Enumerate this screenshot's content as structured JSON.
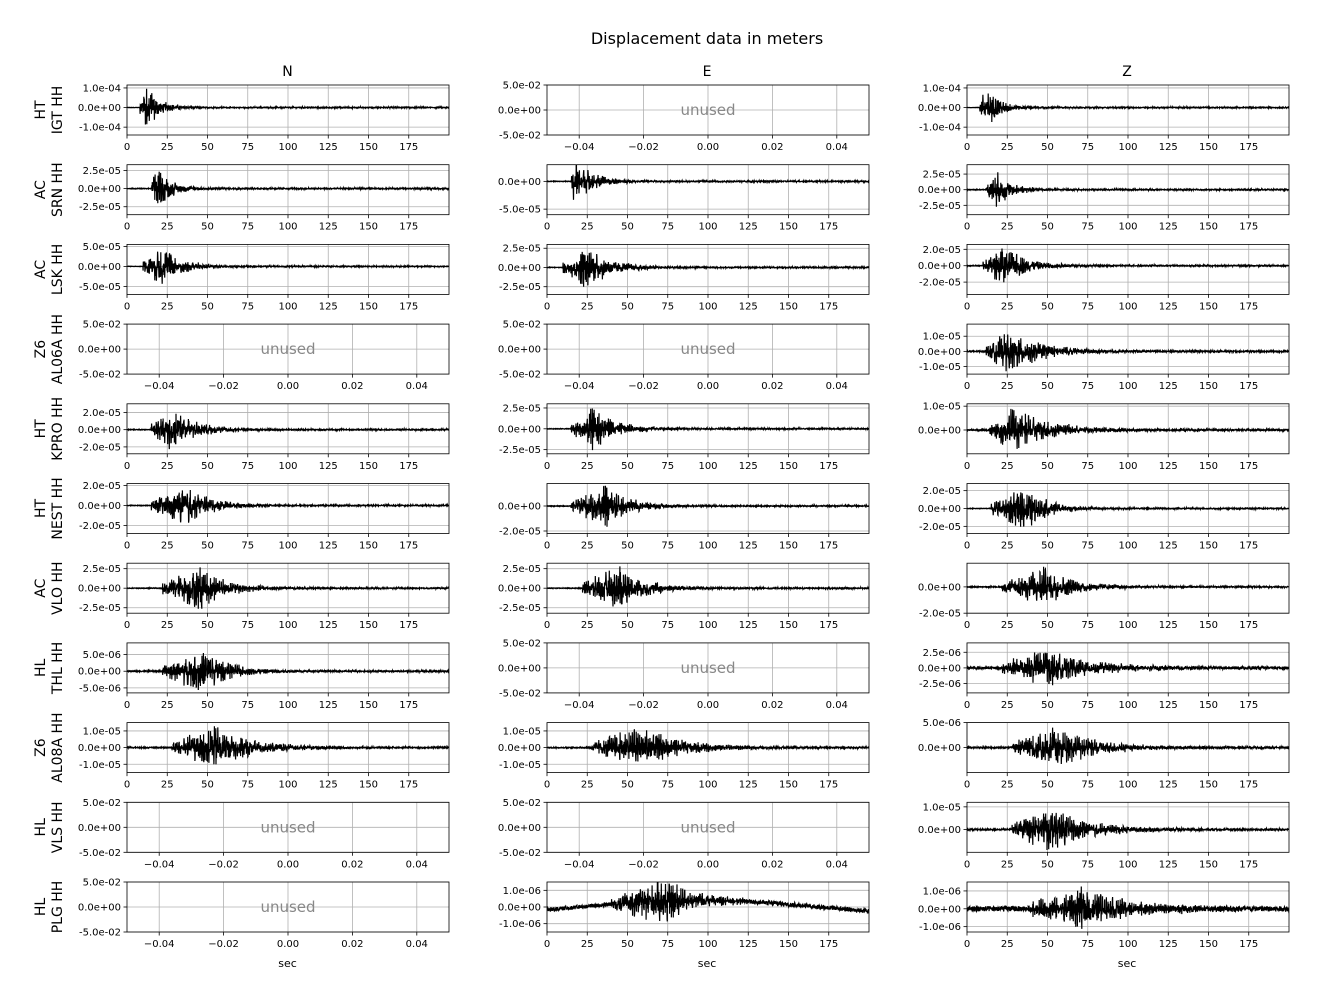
{
  "figure": {
    "title": "Displacement data in meters",
    "columns": [
      "N",
      "E",
      "Z"
    ],
    "xlabel": "sec",
    "unused_label": "unused",
    "trace_color": "#000000",
    "grid_color": "#b0b0b0",
    "unused_color": "#888888"
  },
  "chart_data": {
    "type": "line",
    "description_units": "displacement (m) vs time (sec)",
    "time_xlim": [
      0,
      200
    ],
    "time_xticks": [
      "0",
      "25",
      "50",
      "75",
      "100",
      "125",
      "150",
      "175"
    ],
    "unused_xticks": [
      "−0.04",
      "−0.02",
      "0.00",
      "0.02",
      "0.04"
    ],
    "unused_yticks": [
      "5.0e-02",
      "0.0e+00",
      "-5.0e-02"
    ],
    "rows": [
      {
        "label": [
          "HT",
          "IGT HH"
        ],
        "panels": [
          {
            "unused": false,
            "yticks": [
              "1.0e-04",
              "0.0e+00",
              "-1.0e-04"
            ],
            "ytick_values": [
              0.0001,
              0,
              -0.0001
            ],
            "ylim": [
              -0.00014,
              0.000115
            ],
            "amp": 0.00012,
            "onset": 8,
            "peak": 12,
            "decay": 8,
            "noise": 1e-06,
            "period": 0.8
          },
          {
            "unused": true
          },
          {
            "unused": false,
            "yticks": [
              "1.0e-04",
              "0.0e+00",
              "-1.0e-04"
            ],
            "ytick_values": [
              0.0001,
              0,
              -0.0001
            ],
            "ylim": [
              -0.00014,
              0.000115
            ],
            "amp": 0.00012,
            "onset": 8,
            "peak": 12,
            "decay": 8,
            "noise": 1e-06,
            "period": 0.8
          }
        ]
      },
      {
        "label": [
          "AC",
          "SRN HH"
        ],
        "panels": [
          {
            "unused": false,
            "yticks": [
              "2.5e-05",
              "0.0e+00",
              "-2.5e-05"
            ],
            "ytick_values": [
              2.5e-05,
              0,
              -2.5e-05
            ],
            "ylim": [
              -3.6e-05,
              3.3e-05
            ],
            "amp": 3.2e-05,
            "onset": 15,
            "peak": 18,
            "decay": 9,
            "noise": 5e-07,
            "period": 0.9
          },
          {
            "unused": false,
            "yticks": [
              "0.0e+00",
              "-5.0e-05"
            ],
            "ytick_values": [
              0,
              -5e-05
            ],
            "ylim": [
              -6e-05,
              3e-05
            ],
            "amp": 5e-05,
            "onset": 15,
            "peak": 17,
            "decay": 10,
            "noise": 5e-07,
            "period": 0.9
          },
          {
            "unused": false,
            "yticks": [
              "2.5e-05",
              "0.0e+00",
              "-2.5e-05"
            ],
            "ytick_values": [
              2.5e-05,
              0,
              -2.5e-05
            ],
            "ylim": [
              -4e-05,
              4e-05
            ],
            "amp": 3.5e-05,
            "onset": 12,
            "peak": 18,
            "decay": 9,
            "noise": 5e-07,
            "period": 0.9
          }
        ]
      },
      {
        "label": [
          "AC",
          "LSK HH"
        ],
        "panels": [
          {
            "unused": false,
            "yticks": [
              "5.0e-05",
              "0.0e+00",
              "-5.0e-05"
            ],
            "ytick_values": [
              5e-05,
              0,
              -5e-05
            ],
            "ylim": [
              -7e-05,
              5.5e-05
            ],
            "amp": 5.5e-05,
            "onset": 10,
            "peak": 22,
            "decay": 12,
            "noise": 5e-07,
            "period": 0.9
          },
          {
            "unused": false,
            "yticks": [
              "2.5e-05",
              "0.0e+00",
              "-2.5e-05"
            ],
            "ytick_values": [
              2.5e-05,
              0,
              -2.5e-05
            ],
            "ylim": [
              -3.5e-05,
              3e-05
            ],
            "amp": 3e-05,
            "onset": 10,
            "peak": 25,
            "decay": 14,
            "noise": 4e-07,
            "period": 0.9
          },
          {
            "unused": false,
            "yticks": [
              "2.0e-05",
              "0.0e+00",
              "-2.0e-05"
            ],
            "ytick_values": [
              2e-05,
              0,
              -2e-05
            ],
            "ylim": [
              -3.5e-05,
              2.6e-05
            ],
            "amp": 2.6e-05,
            "onset": 10,
            "peak": 23,
            "decay": 14,
            "noise": 4e-07,
            "period": 0.9
          }
        ]
      },
      {
        "label": [
          "Z6",
          "AL06A HH"
        ],
        "panels": [
          {
            "unused": true
          },
          {
            "unused": true
          },
          {
            "unused": false,
            "yticks": [
              "1.0e-05",
              "0.0e+00",
              "-1.0e-05"
            ],
            "ytick_values": [
              1e-05,
              0,
              -1e-05
            ],
            "ylim": [
              -1.5e-05,
              1.8e-05
            ],
            "amp": 1.5e-05,
            "onset": 12,
            "peak": 27,
            "decay": 20,
            "noise": 4e-07,
            "period": 1.0
          }
        ]
      },
      {
        "label": [
          "HT",
          "KPRO HH"
        ],
        "panels": [
          {
            "unused": false,
            "yticks": [
              "2.0e-05",
              "0.0e+00",
              "-2.0e-05"
            ],
            "ytick_values": [
              2e-05,
              0,
              -2e-05
            ],
            "ylim": [
              -2.8e-05,
              3e-05
            ],
            "amp": 2.8e-05,
            "onset": 15,
            "peak": 28,
            "decay": 14,
            "noise": 4e-07,
            "period": 1.0
          },
          {
            "unused": false,
            "yticks": [
              "2.5e-05",
              "0.0e+00",
              "-2.5e-05"
            ],
            "ytick_values": [
              2.5e-05,
              0,
              -2.5e-05
            ],
            "ylim": [
              -3e-05,
              3e-05
            ],
            "amp": 2.8e-05,
            "onset": 15,
            "peak": 28,
            "decay": 14,
            "noise": 4e-07,
            "period": 1.0
          },
          {
            "unused": false,
            "yticks": [
              "1.0e-05",
              "0.0e+00"
            ],
            "ytick_values": [
              1e-05,
              0
            ],
            "ylim": [
              -1e-05,
              1.1e-05
            ],
            "amp": 1e-05,
            "onset": 14,
            "peak": 28,
            "decay": 22,
            "noise": 3e-07,
            "period": 1.0
          }
        ]
      },
      {
        "label": [
          "HT",
          "NEST HH"
        ],
        "panels": [
          {
            "unused": false,
            "yticks": [
              "2.0e-05",
              "0.0e+00",
              "-2.0e-05"
            ],
            "ytick_values": [
              2e-05,
              0,
              -2e-05
            ],
            "ylim": [
              -2.8e-05,
              2.2e-05
            ],
            "amp": 2.2e-05,
            "onset": 15,
            "peak": 37,
            "decay": 14,
            "noise": 3e-07,
            "period": 1.0
          },
          {
            "unused": false,
            "yticks": [
              "0.0e+00",
              "-2.0e-05"
            ],
            "ytick_values": [
              0,
              -2e-05
            ],
            "ylim": [
              -2.2e-05,
              1.8e-05
            ],
            "amp": 1.8e-05,
            "onset": 15,
            "peak": 37,
            "decay": 14,
            "noise": 3e-07,
            "period": 1.0
          },
          {
            "unused": false,
            "yticks": [
              "2.0e-05",
              "0.0e+00",
              "-2.0e-05"
            ],
            "ytick_values": [
              2e-05,
              0,
              -2e-05
            ],
            "ylim": [
              -2.8e-05,
              2.8e-05
            ],
            "amp": 2.8e-05,
            "onset": 15,
            "peak": 37,
            "decay": 12,
            "noise": 3e-07,
            "period": 1.0
          }
        ]
      },
      {
        "label": [
          "AC",
          "VLO HH"
        ],
        "panels": [
          {
            "unused": false,
            "yticks": [
              "2.5e-05",
              "0.0e+00",
              "-2.5e-05"
            ],
            "ytick_values": [
              2.5e-05,
              0,
              -2.5e-05
            ],
            "ylim": [
              -3.2e-05,
              3.2e-05
            ],
            "amp": 3e-05,
            "onset": 22,
            "peak": 45,
            "decay": 16,
            "noise": 4e-07,
            "period": 1.1
          },
          {
            "unused": false,
            "yticks": [
              "2.5e-05",
              "0.0e+00",
              "-2.5e-05"
            ],
            "ytick_values": [
              2.5e-05,
              0,
              -2.5e-05
            ],
            "ylim": [
              -3.2e-05,
              3.2e-05
            ],
            "amp": 3e-05,
            "onset": 22,
            "peak": 45,
            "decay": 16,
            "noise": 4e-07,
            "period": 1.1
          },
          {
            "unused": false,
            "yticks": [
              "0.0e+00",
              "-2.0e-05"
            ],
            "ytick_values": [
              0,
              -2e-05
            ],
            "ylim": [
              -2e-05,
              1.8e-05
            ],
            "amp": 1.6e-05,
            "onset": 22,
            "peak": 47,
            "decay": 18,
            "noise": 3e-07,
            "period": 1.1
          }
        ]
      },
      {
        "label": [
          "HL",
          "THL HH"
        ],
        "panels": [
          {
            "unused": false,
            "yticks": [
              "5.0e-06",
              "0.0e+00",
              "-5.0e-06"
            ],
            "ytick_values": [
              5e-06,
              0,
              -5e-06
            ],
            "ylim": [
              -6.5e-06,
              8.5e-06
            ],
            "amp": 7e-06,
            "onset": 22,
            "peak": 47,
            "decay": 16,
            "noise": 1.5e-07,
            "period": 1.1
          },
          {
            "unused": true
          },
          {
            "unused": false,
            "yticks": [
              "2.5e-06",
              "0.0e+00",
              "-2.5e-06"
            ],
            "ytick_values": [
              2.5e-06,
              0,
              -2.5e-06
            ],
            "ylim": [
              -4e-06,
              4e-06
            ],
            "amp": 3.3e-06,
            "onset": 22,
            "peak": 48,
            "decay": 28,
            "noise": 2e-07,
            "period": 1.1
          }
        ]
      },
      {
        "label": [
          "Z6",
          "AL08A HH"
        ],
        "panels": [
          {
            "unused": false,
            "yticks": [
              "1.0e-05",
              "0.0e+00",
              "-1.0e-05"
            ],
            "ytick_values": [
              1e-05,
              0,
              -1e-05
            ],
            "ylim": [
              -1.5e-05,
              1.5e-05
            ],
            "amp": 1.4e-05,
            "onset": 28,
            "peak": 55,
            "decay": 22,
            "noise": 3e-07,
            "period": 1.1
          },
          {
            "unused": false,
            "yticks": [
              "1.0e-05",
              "0.0e+00",
              "-1.0e-05"
            ],
            "ytick_values": [
              1e-05,
              0,
              -1e-05
            ],
            "ylim": [
              -1.5e-05,
              1.5e-05
            ],
            "amp": 1.4e-05,
            "onset": 28,
            "peak": 58,
            "decay": 24,
            "noise": 3e-07,
            "period": 1.1
          },
          {
            "unused": false,
            "yticks": [
              "5.0e-06",
              "0.0e+00"
            ],
            "ytick_values": [
              5e-06,
              0
            ],
            "ylim": [
              -5e-06,
              5e-06
            ],
            "amp": 4.5e-06,
            "onset": 28,
            "peak": 55,
            "decay": 24,
            "noise": 1.5e-07,
            "period": 1.1
          }
        ]
      },
      {
        "label": [
          "HL",
          "VLS HH"
        ],
        "panels": [
          {
            "unused": true
          },
          {
            "unused": true
          },
          {
            "unused": false,
            "yticks": [
              "1.0e-05",
              "0.0e+00"
            ],
            "ytick_values": [
              1e-05,
              0
            ],
            "ylim": [
              -1e-05,
              1.2e-05
            ],
            "amp": 1.1e-05,
            "onset": 28,
            "peak": 50,
            "decay": 24,
            "noise": 3e-07,
            "period": 1.1
          }
        ]
      },
      {
        "label": [
          "HL",
          "PLG HH"
        ],
        "panels": [
          {
            "unused": true
          },
          {
            "unused": false,
            "yticks": [
              "1.0e-06",
              "0.0e+00",
              "-1.0e-06"
            ],
            "ytick_values": [
              1e-06,
              0,
              -1e-06
            ],
            "ylim": [
              -1.5e-06,
              1.5e-06
            ],
            "amp": 1.4e-06,
            "onset": 40,
            "peak": 73,
            "decay": 20,
            "noise": 1.2e-07,
            "period": 1.2,
            "drift": 5e-07
          },
          {
            "unused": false,
            "yticks": [
              "1.0e-06",
              "0.0e+00",
              "-1.0e-06"
            ],
            "ytick_values": [
              1e-06,
              0,
              -1e-06
            ],
            "ylim": [
              -1.3e-06,
              1.5e-06
            ],
            "amp": 1.3e-06,
            "onset": 40,
            "peak": 72,
            "decay": 26,
            "noise": 1.5e-07,
            "period": 1.2
          }
        ]
      }
    ]
  }
}
